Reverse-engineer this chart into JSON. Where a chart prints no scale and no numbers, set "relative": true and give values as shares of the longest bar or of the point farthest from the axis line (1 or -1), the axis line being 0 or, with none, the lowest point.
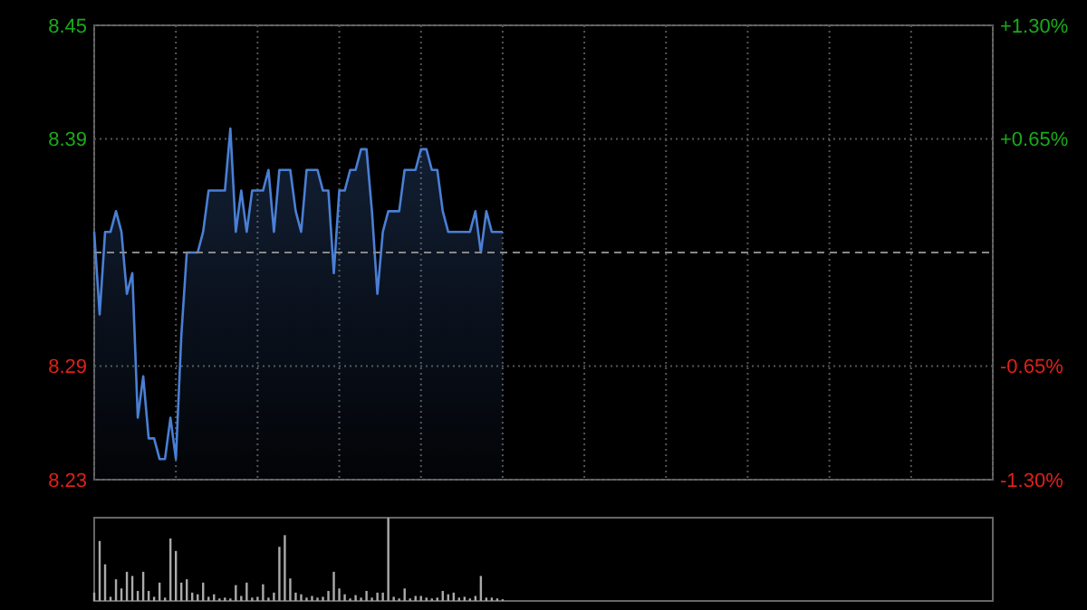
{
  "chart_data": [
    {
      "type": "area",
      "categories": [
        null,
        null,
        null,
        null,
        null,
        null,
        null,
        null,
        null,
        null,
        null,
        null,
        null,
        null,
        null,
        null,
        null,
        null,
        null,
        null,
        null,
        null,
        null,
        null,
        null,
        null,
        null,
        null,
        null,
        null,
        null,
        null,
        null,
        null,
        null,
        null,
        null,
        null,
        null,
        null,
        null,
        null,
        null,
        null,
        null,
        null,
        null,
        null,
        null,
        null,
        null,
        null,
        null,
        null,
        null,
        null,
        null,
        null,
        null,
        null,
        null,
        null,
        null,
        null,
        null,
        null,
        null,
        null,
        null,
        null,
        null,
        null,
        null,
        null,
        null,
        null,
        null,
        null,
        null,
        null,
        null,
        null,
        null,
        null,
        null,
        null,
        null,
        null,
        null,
        null,
        null,
        null,
        null,
        null,
        null,
        null,
        null,
        null,
        null,
        null,
        null,
        null,
        null,
        null,
        null,
        null,
        null,
        null,
        null,
        null,
        null,
        null,
        null,
        null,
        null,
        null,
        null,
        null,
        null,
        null,
        null,
        null,
        null,
        null,
        null,
        null,
        null,
        null,
        null,
        null,
        null,
        null,
        null,
        null,
        null,
        null,
        null,
        null,
        null,
        null,
        null,
        null,
        null,
        null,
        null,
        null,
        null,
        null,
        null,
        null,
        null,
        null,
        null,
        null,
        null,
        null,
        null,
        null,
        null,
        null,
        null,
        null,
        null,
        null,
        null,
        null
      ],
      "ylim": [
        8.23,
        8.45
      ],
      "yticks": [
        {
          "value": 8.23,
          "label": "8.23"
        },
        {
          "value": 8.285,
          "label": "8.29"
        },
        {
          "value": 8.395,
          "label": "8.39"
        },
        {
          "value": 8.45,
          "label": "8.45"
        }
      ],
      "y2lim": [
        -1.3,
        1.3
      ],
      "y2ticks": [
        {
          "value": -1.3,
          "label": "-1.30%"
        },
        {
          "value": -0.65,
          "label": "-0.65%"
        },
        {
          "value": 0.65,
          "label": "+0.65%"
        },
        {
          "value": 1.3,
          "label": "+1.30%"
        }
      ],
      "grid": true,
      "ref_lines": [
        {
          "axis": "y",
          "value": 8.34,
          "color": "#888888",
          "line_style": "dashed"
        }
      ],
      "series": [
        {
          "color": "#4a7fd4",
          "values": [
            8.35,
            8.31,
            8.35,
            8.35,
            8.36,
            8.35,
            8.32,
            8.33,
            8.26,
            8.28,
            8.25,
            8.25,
            8.24,
            8.24,
            8.26,
            8.24,
            8.3,
            8.34,
            8.34,
            8.34,
            8.35,
            8.37,
            8.37,
            8.37,
            8.37,
            8.4,
            8.35,
            8.37,
            8.35,
            8.37,
            8.37,
            8.37,
            8.38,
            8.35,
            8.38,
            8.38,
            8.38,
            8.36,
            8.35,
            8.38,
            8.38,
            8.38,
            8.37,
            8.37,
            8.33,
            8.37,
            8.37,
            8.38,
            8.38,
            8.39,
            8.39,
            8.36,
            8.32,
            8.35,
            8.36,
            8.36,
            8.36,
            8.38,
            8.38,
            8.38,
            8.39,
            8.39,
            8.38,
            8.38,
            8.36,
            8.35,
            8.35,
            8.35,
            8.35,
            8.35,
            8.36,
            8.34,
            8.36,
            8.35,
            8.35,
            8.35,
            null,
            null,
            null,
            null,
            null,
            null,
            null,
            null,
            null,
            null,
            null,
            null,
            null,
            null,
            null,
            null,
            null,
            null,
            null,
            null,
            null,
            null,
            null,
            null,
            null,
            null,
            null,
            null,
            null,
            null,
            null,
            null,
            null,
            null,
            null,
            null,
            null,
            null,
            null,
            null,
            null,
            null,
            null,
            null,
            null,
            null,
            null,
            null,
            null,
            null,
            null,
            null,
            null,
            null,
            null,
            null,
            null,
            null,
            null,
            null,
            null,
            null,
            null,
            null,
            null,
            null,
            null,
            null,
            null,
            null,
            null,
            null,
            null,
            null,
            null,
            null,
            null,
            null,
            null,
            null,
            null,
            null,
            null,
            null,
            null,
            null,
            null,
            null,
            null,
            null
          ]
        }
      ]
    },
    {
      "type": "bar",
      "relative": true,
      "color": "#aaaaaa",
      "categories": [
        null,
        null,
        null,
        null,
        null,
        null,
        null,
        null,
        null,
        null,
        null,
        null,
        null,
        null,
        null,
        null,
        null,
        null,
        null,
        null,
        null,
        null,
        null,
        null,
        null,
        null,
        null,
        null,
        null,
        null,
        null,
        null,
        null,
        null,
        null,
        null,
        null,
        null,
        null,
        null,
        null,
        null,
        null,
        null,
        null,
        null,
        null,
        null,
        null,
        null,
        null,
        null,
        null,
        null,
        null,
        null,
        null,
        null,
        null,
        null,
        null,
        null,
        null,
        null,
        null,
        null,
        null,
        null,
        null,
        null,
        null,
        null,
        null,
        null,
        null,
        null,
        null,
        null,
        null,
        null,
        null,
        null,
        null,
        null,
        null,
        null,
        null,
        null,
        null,
        null,
        null,
        null,
        null,
        null,
        null,
        null,
        null,
        null,
        null,
        null,
        null,
        null,
        null,
        null,
        null,
        null,
        null,
        null,
        null,
        null,
        null,
        null,
        null,
        null,
        null,
        null,
        null,
        null,
        null,
        null,
        null,
        null,
        null,
        null,
        null,
        null,
        null,
        null,
        null,
        null,
        null,
        null,
        null,
        null,
        null,
        null,
        null,
        null,
        null,
        null,
        null,
        null,
        null,
        null,
        null,
        null,
        null,
        null,
        null,
        null,
        null,
        null,
        null,
        null,
        null,
        null,
        null,
        null,
        null,
        null,
        null,
        null,
        null,
        null,
        null,
        null
      ],
      "values": [
        0.1,
        0.72,
        0.44,
        0.05,
        0.26,
        0.15,
        0.35,
        0.3,
        0.12,
        0.35,
        0.12,
        0.05,
        0.22,
        0.04,
        0.75,
        0.6,
        0.22,
        0.26,
        0.1,
        0.08,
        0.22,
        0.05,
        0.08,
        0.03,
        0.04,
        0.03,
        0.19,
        0.06,
        0.22,
        0.04,
        0.05,
        0.2,
        0.04,
        0.1,
        0.65,
        0.79,
        0.27,
        0.1,
        0.08,
        0.04,
        0.06,
        0.04,
        0.05,
        0.12,
        0.35,
        0.15,
        0.08,
        0.03,
        0.07,
        0.04,
        0.12,
        0.04,
        0.1,
        0.1,
        1,
        0.05,
        0.03,
        0.15,
        0.03,
        0.06,
        0.06,
        0.04,
        0.03,
        0.04,
        0.12,
        0.08,
        0.1,
        0.04,
        0.05,
        0.03,
        0.06,
        0.3,
        0.04,
        0.04,
        0.03,
        0.02,
        null,
        null,
        null,
        null,
        null,
        null,
        null,
        null,
        null,
        null,
        null,
        null,
        null,
        null,
        null,
        null,
        null,
        null,
        null,
        null,
        null,
        null,
        null,
        null,
        null,
        null,
        null,
        null,
        null,
        null,
        null,
        null,
        null,
        null,
        null,
        null,
        null,
        null,
        null,
        null,
        null,
        null,
        null,
        null,
        null,
        null,
        null,
        null,
        null,
        null,
        null,
        null,
        null,
        null,
        null,
        null,
        null,
        null,
        null,
        null,
        null,
        null,
        null,
        null,
        null,
        null,
        null,
        null,
        null,
        null,
        null,
        null,
        null,
        null,
        null,
        null,
        null,
        null,
        null,
        null,
        null,
        null,
        null,
        null,
        null,
        null,
        null,
        null,
        null,
        null
      ]
    }
  ]
}
